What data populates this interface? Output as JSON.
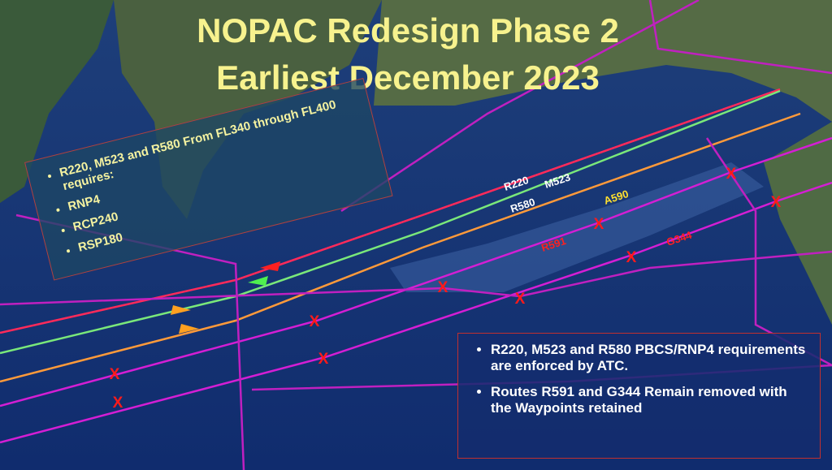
{
  "title": {
    "line1": "NOPAC Redesign Phase 2",
    "line2": "Earliest December 2023"
  },
  "left_box": {
    "bullets": [
      "R220, M523 and R580 From FL340 through FL400 requires:",
      "RNP4",
      "RCP240",
      "RSP180"
    ]
  },
  "right_box": {
    "bullets": [
      "R220, M523 and R580 PBCS/RNP4 requirements are enforced by ATC.",
      "Routes R591 and G344 Remain removed with the Waypoints retained"
    ]
  },
  "route_labels": {
    "r220": "R220",
    "m523": "M523",
    "r580": "R580",
    "a590": "A590",
    "r591": "R591",
    "g344": "G344"
  },
  "waypoint_marker": "X"
}
